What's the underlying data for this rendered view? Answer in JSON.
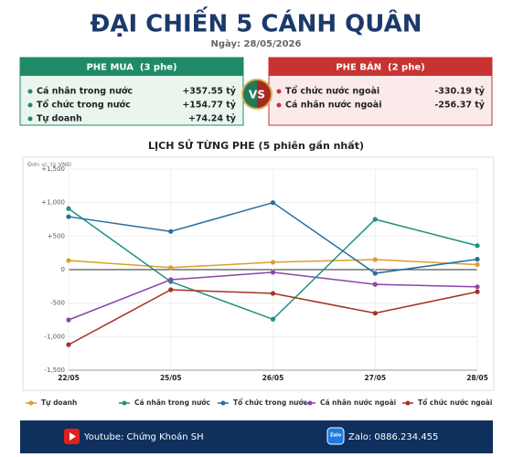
{
  "header": {
    "title": "ĐẠI CHIẾN 5 CÁNH QUÂN",
    "date": "Ngày: 28/05/2026"
  },
  "buy": {
    "title": "PHE MUA  (3 phe)",
    "rows": [
      {
        "name": "Cá nhân trong nước",
        "value": "+357.55 tỷ"
      },
      {
        "name": "Tổ chức trong nước",
        "value": "+154.77 tỷ"
      },
      {
        "name": "Tự doanh",
        "value": "+74.24 tỷ"
      }
    ]
  },
  "vs": "VS",
  "sell": {
    "title": "PHE BÁN  (2 phe)",
    "rows": [
      {
        "name": "Tổ chức nước ngoài",
        "value": "-330.19 tỷ"
      },
      {
        "name": "Cá nhân nước ngoài",
        "value": "-256.37 tỷ"
      }
    ]
  },
  "chart_data": {
    "type": "line",
    "title": "LỊCH SỬ TỪNG PHE (5 phiên gần nhất)",
    "unit_label": "Đơn vị: tỷ VNĐ",
    "categories": [
      "22/05",
      "25/05",
      "26/05",
      "27/05",
      "28/05"
    ],
    "series": [
      {
        "name": "Tự doanh",
        "color": "#d9a02a",
        "values": [
          136,
          30,
          110,
          150,
          74.24
        ]
      },
      {
        "name": "Cá nhân trong nước",
        "color": "#1e9282",
        "values": [
          910,
          -180,
          -740,
          750,
          357.55
        ]
      },
      {
        "name": "Tổ chức trong nước",
        "color": "#2a6d9e",
        "values": [
          790,
          570,
          1000,
          -55,
          154.77
        ]
      },
      {
        "name": "Cá nhân nước ngoài",
        "color": "#8a45a8",
        "values": [
          -750,
          -150,
          -40,
          -220,
          -256.37
        ]
      },
      {
        "name": "Tổ chức nước ngoài",
        "color": "#a53224",
        "values": [
          -1120,
          -300,
          -355,
          -650,
          -330.19
        ]
      }
    ],
    "ylim": [
      -1500,
      1500
    ],
    "yticks": [
      {
        "value": 1500,
        "label": "+1,500"
      },
      {
        "value": 1000,
        "label": "+1,000"
      },
      {
        "value": 500,
        "label": "+500"
      },
      0,
      -500,
      {
        "value": -1000,
        "label": "-1,000"
      },
      {
        "value": -1500,
        "label": "-1,500"
      }
    ],
    "grid": true,
    "legend": "bottom"
  },
  "footer": {
    "youtube": "Youtube: Chứng Khoán SH",
    "zalo_icon": "Zalo",
    "zalo": "Zalo: 0886.234.455"
  }
}
